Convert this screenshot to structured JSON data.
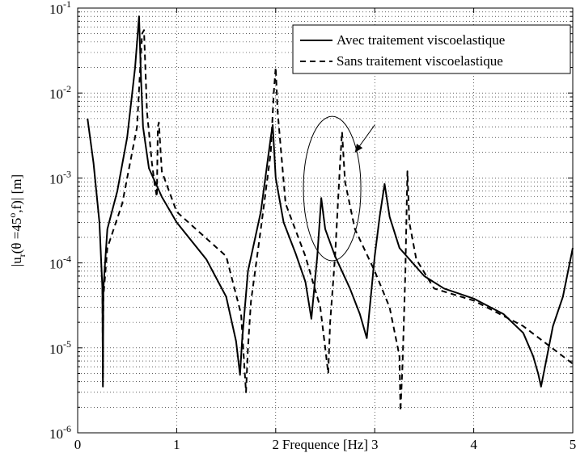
{
  "chart_data": {
    "type": "line",
    "xlabel": "Frequence [Hz]",
    "ylabel_parts": {
      "pre": "|u",
      "sub": "r",
      "mid": "(θ =45",
      "sup": "o",
      "post": ",f)| [m]"
    },
    "xlim": [
      0,
      5
    ],
    "ylim": [
      1e-06,
      0.1
    ],
    "yscale": "log",
    "grid": true,
    "legend_position": "top-right",
    "x_ticks": [
      0,
      1,
      2,
      3,
      4,
      5
    ],
    "y_ticks": [
      {
        "base": "10",
        "exp": "-6"
      },
      {
        "base": "10",
        "exp": "-5"
      },
      {
        "base": "10",
        "exp": "-4"
      },
      {
        "base": "10",
        "exp": "-3"
      },
      {
        "base": "10",
        "exp": "-2"
      },
      {
        "base": "10",
        "exp": "-1"
      }
    ],
    "series": [
      {
        "name": "Avec traitement viscoelastique",
        "style": "solid",
        "color": "#000000",
        "x": [
          0.1,
          0.16,
          0.22,
          0.25,
          0.255,
          0.26,
          0.3,
          0.4,
          0.5,
          0.58,
          0.62,
          0.64,
          0.66,
          0.72,
          0.85,
          1.0,
          1.3,
          1.5,
          1.6,
          1.64,
          1.66,
          1.72,
          1.85,
          1.95,
          1.97,
          2.0,
          2.08,
          2.2,
          2.3,
          2.36,
          2.42,
          2.46,
          2.5,
          2.6,
          2.75,
          2.85,
          2.92,
          2.95,
          3.0,
          3.05,
          3.1,
          3.15,
          3.25,
          3.5,
          3.7,
          4.0,
          4.3,
          4.5,
          4.6,
          4.65,
          4.68,
          4.72,
          4.8,
          4.9,
          5.0
        ],
        "y": [
          0.005,
          0.0015,
          0.0003,
          5e-05,
          3.5e-06,
          5e-05,
          0.00025,
          0.0007,
          0.003,
          0.02,
          0.08,
          0.015,
          0.004,
          0.0013,
          0.0006,
          0.0003,
          0.00011,
          4e-05,
          1.2e-05,
          4.8e-06,
          1.2e-05,
          8e-05,
          0.0004,
          0.003,
          0.0042,
          0.001,
          0.0003,
          0.00013,
          6e-05,
          2.2e-05,
          0.00012,
          0.00058,
          0.00025,
          0.00012,
          5e-05,
          2.5e-05,
          1.3e-05,
          3e-05,
          0.00012,
          0.00035,
          0.00085,
          0.00035,
          0.00015,
          7e-05,
          5e-05,
          3.8e-05,
          2.5e-05,
          1.5e-05,
          8e-06,
          5e-06,
          3.5e-06,
          6e-06,
          1.8e-05,
          4e-05,
          0.00015
        ]
      },
      {
        "name": "Sans traitement viscoelastique",
        "style": "dashed",
        "color": "#000000",
        "x": [
          0.25,
          0.255,
          0.26,
          0.3,
          0.45,
          0.6,
          0.65,
          0.67,
          0.7,
          0.75,
          0.78,
          0.8,
          0.81,
          0.82,
          0.85,
          1.0,
          1.5,
          1.65,
          1.7,
          1.72,
          1.75,
          1.85,
          1.95,
          1.98,
          2.0,
          2.02,
          2.1,
          2.3,
          2.45,
          2.5,
          2.53,
          2.55,
          2.6,
          2.65,
          2.67,
          2.7,
          2.8,
          3.0,
          3.15,
          3.25,
          3.26,
          3.28,
          3.31,
          3.33,
          3.35,
          3.42,
          3.6,
          4.0,
          4.5,
          5.0
        ],
        "y": [
          5e-05,
          4.5e-06,
          4e-05,
          0.00015,
          0.0005,
          0.004,
          0.05,
          0.055,
          0.006,
          0.0015,
          0.0008,
          0.0006,
          0.004,
          0.0045,
          0.0012,
          0.0004,
          0.00012,
          2.5e-05,
          3e-06,
          1e-05,
          3.5e-05,
          0.00025,
          0.002,
          0.01,
          0.02,
          0.006,
          0.0005,
          0.00012,
          3e-05,
          1e-05,
          5e-06,
          2e-05,
          0.00012,
          0.0015,
          0.0035,
          0.0009,
          0.00025,
          8e-05,
          3e-05,
          8e-06,
          1.8e-06,
          6e-06,
          8e-05,
          0.0012,
          0.0003,
          0.00011,
          5e-05,
          3.6e-05,
          1.8e-05,
          6.5e-06
        ]
      }
    ],
    "annotations": [
      {
        "type": "ellipse",
        "center": [
          2.57,
          0.00075
        ],
        "rx_data": 0.29,
        "ylog_half_span": 0.85
      },
      {
        "type": "arrow",
        "from": [
          3.0,
          0.0042
        ],
        "to": [
          2.8,
          0.002
        ]
      }
    ]
  }
}
